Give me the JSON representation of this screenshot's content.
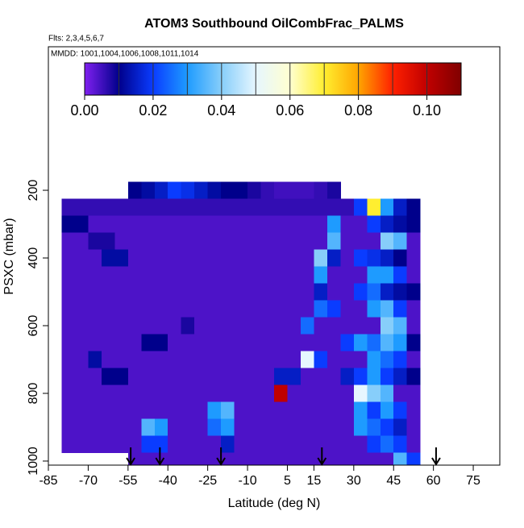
{
  "chart_data": {
    "type": "heatmap",
    "title": "ATOM3 Southbound OilCombFrac_PALMS",
    "subtitle": "Flts: 2,3,4,5,6,7",
    "annotation": "MMDD: 1001,1004,1006,1008,1011,1014",
    "x_label": "Latitude (deg N)",
    "y_label": "PSXC (mbar)",
    "xlim": [
      -85,
      85
    ],
    "ylim": [
      1012,
      -224
    ],
    "xticks": [
      -85,
      -70,
      -55,
      -40,
      -25,
      -10,
      5,
      15,
      30,
      45,
      60,
      75
    ],
    "yticks": [
      200,
      400,
      600,
      800,
      1000
    ],
    "lat_bins": [
      -80,
      -75,
      -70,
      -65,
      -60,
      -55,
      -50,
      -45,
      -40,
      -35,
      -30,
      -25,
      -20,
      -15,
      -10,
      -5,
      0,
      5,
      10,
      15,
      20,
      25,
      30,
      35,
      40,
      45,
      50,
      55
    ],
    "pressure_bins": [
      175,
      225,
      275,
      325,
      375,
      425,
      475,
      525,
      575,
      625,
      675,
      725,
      775,
      825,
      875,
      925,
      975,
      1010
    ],
    "values": [
      [
        null,
        null,
        null,
        null,
        null,
        0.01,
        0.012,
        0.015,
        0.02,
        0.018,
        0.015,
        0.012,
        0.01,
        0.01,
        0.008,
        0.006,
        0.005,
        0.005,
        0.005,
        0.006,
        0.008,
        null,
        null,
        null,
        null,
        null,
        null
      ],
      [
        0.006,
        0.006,
        0.006,
        0.006,
        0.006,
        0.006,
        0.006,
        0.006,
        0.006,
        0.006,
        0.006,
        0.006,
        0.006,
        0.006,
        0.006,
        0.006,
        0.006,
        0.006,
        0.006,
        0.006,
        0.006,
        0.006,
        0.02,
        0.07,
        0.03,
        0.015,
        0.01
      ],
      [
        0.01,
        0.01,
        0.004,
        0.004,
        0.004,
        0.004,
        0.004,
        0.004,
        0.004,
        0.004,
        0.004,
        0.004,
        0.004,
        0.004,
        0.004,
        0.004,
        0.004,
        0.004,
        0.004,
        0.004,
        0.03,
        0.004,
        0.004,
        0.02,
        0.015,
        0.012,
        0.01
      ],
      [
        0.004,
        0.004,
        0.008,
        0.008,
        0.004,
        0.004,
        0.004,
        0.004,
        0.004,
        0.004,
        0.004,
        0.004,
        0.004,
        0.004,
        0.004,
        0.004,
        0.004,
        0.004,
        0.004,
        0.004,
        0.035,
        0.004,
        0.004,
        0.004,
        0.04,
        0.035,
        0.004
      ],
      [
        0.004,
        0.004,
        0.004,
        0.012,
        0.012,
        0.004,
        0.004,
        0.004,
        0.004,
        0.004,
        0.004,
        0.004,
        0.004,
        0.004,
        0.004,
        0.004,
        0.004,
        0.004,
        0.004,
        0.04,
        0.015,
        0.004,
        0.02,
        0.018,
        0.015,
        0.01,
        0.004
      ],
      [
        0.004,
        0.004,
        0.004,
        0.004,
        0.004,
        0.004,
        0.004,
        0.004,
        0.004,
        0.004,
        0.004,
        0.004,
        0.004,
        0.004,
        0.004,
        0.004,
        0.004,
        0.004,
        0.004,
        0.03,
        0.004,
        0.004,
        0.004,
        0.03,
        0.03,
        0.02,
        0.004
      ],
      [
        0.004,
        0.004,
        0.004,
        0.004,
        0.004,
        0.004,
        0.004,
        0.004,
        0.004,
        0.004,
        0.004,
        0.004,
        0.004,
        0.004,
        0.004,
        0.004,
        0.004,
        0.004,
        0.004,
        0.015,
        0.004,
        0.004,
        0.02,
        0.025,
        0.015,
        0.012,
        0.01
      ],
      [
        0.004,
        0.004,
        0.004,
        0.004,
        0.004,
        0.004,
        0.004,
        0.004,
        0.004,
        0.004,
        0.004,
        0.004,
        0.004,
        0.004,
        0.004,
        0.004,
        0.004,
        0.004,
        0.004,
        0.025,
        0.02,
        0.004,
        0.004,
        0.03,
        0.035,
        0.02,
        0.004
      ],
      [
        0.004,
        0.004,
        0.004,
        0.004,
        0.004,
        0.004,
        0.004,
        0.004,
        0.004,
        0.008,
        0.004,
        0.004,
        0.004,
        0.004,
        0.004,
        0.004,
        0.004,
        0.004,
        0.025,
        0.004,
        0.004,
        0.004,
        0.004,
        0.004,
        0.04,
        0.035,
        0.004
      ],
      [
        0.004,
        0.004,
        0.004,
        0.004,
        0.004,
        0.004,
        0.01,
        0.01,
        0.004,
        0.004,
        0.004,
        0.004,
        0.004,
        0.004,
        0.004,
        0.004,
        0.004,
        0.004,
        0.004,
        0.004,
        0.004,
        0.02,
        0.03,
        0.025,
        0.035,
        0.03,
        0.01
      ],
      [
        0.004,
        0.004,
        0.012,
        0.004,
        0.004,
        0.004,
        0.004,
        0.004,
        0.004,
        0.004,
        0.004,
        0.004,
        0.004,
        0.004,
        0.004,
        0.004,
        0.004,
        0.004,
        0.05,
        0.02,
        0.004,
        0.004,
        0.004,
        0.03,
        0.025,
        0.02,
        0.004
      ],
      [
        0.004,
        0.004,
        0.004,
        0.01,
        0.01,
        0.004,
        0.004,
        0.004,
        0.004,
        0.004,
        0.004,
        0.004,
        0.004,
        0.004,
        0.004,
        0.004,
        0.015,
        0.015,
        0.004,
        0.004,
        0.004,
        0.015,
        0.02,
        0.03,
        0.02,
        0.015,
        0.01
      ],
      [
        0.004,
        0.004,
        0.004,
        0.004,
        0.004,
        0.004,
        0.004,
        0.004,
        0.004,
        0.004,
        0.004,
        0.004,
        0.004,
        0.004,
        0.004,
        0.004,
        0.1,
        0.004,
        0.004,
        0.004,
        0.004,
        0.004,
        0.05,
        0.04,
        0.035,
        0.004,
        0.004
      ],
      [
        0.004,
        0.004,
        0.004,
        0.004,
        0.004,
        0.004,
        0.004,
        0.004,
        0.004,
        0.004,
        0.004,
        0.03,
        0.035,
        0.004,
        0.004,
        0.004,
        0.004,
        0.004,
        0.004,
        0.004,
        0.004,
        0.004,
        0.03,
        0.02,
        0.03,
        0.02,
        0.004
      ],
      [
        0.004,
        0.004,
        0.004,
        0.004,
        0.004,
        0.004,
        0.035,
        0.03,
        0.004,
        0.004,
        0.004,
        0.025,
        0.03,
        0.004,
        0.004,
        0.004,
        0.004,
        0.004,
        0.004,
        0.004,
        0.004,
        0.004,
        0.03,
        0.025,
        0.02,
        0.015,
        0.004
      ],
      [
        0.004,
        0.004,
        0.004,
        0.004,
        0.004,
        0.004,
        0.02,
        0.02,
        0.004,
        0.004,
        0.004,
        0.004,
        0.015,
        0.004,
        0.004,
        0.004,
        0.004,
        0.004,
        0.004,
        0.004,
        0.004,
        0.004,
        0.004,
        0.02,
        0.025,
        0.02,
        0.004
      ],
      [
        null,
        null,
        null,
        null,
        null,
        0.004,
        0.004,
        0.004,
        0.004,
        0.004,
        0.004,
        0.004,
        0.004,
        0.004,
        0.004,
        0.004,
        0.004,
        0.004,
        0.004,
        0.004,
        0.004,
        0.004,
        0.004,
        0.004,
        0.004,
        0.035,
        0.02
      ]
    ],
    "colorbar_lim": [
      0,
      0.11
    ],
    "colorbar_ticks": [
      {
        "value": 0,
        "label": "0.00"
      },
      {
        "value": 0.02,
        "label": "0.02"
      },
      {
        "value": 0.04,
        "label": "0.04"
      },
      {
        "value": 0.06,
        "label": "0.06"
      },
      {
        "value": 0.08,
        "label": "0.08"
      },
      {
        "value": 0.1,
        "label": "0.10"
      }
    ],
    "colorscale": [
      "#8020f0",
      "#00008b",
      "#0a3cff",
      "#1e9bff",
      "#87cefa",
      "#e6f6ff",
      "#ffffd0",
      "#ffee30",
      "#ffa500",
      "#ff2000",
      "#c00000",
      "#800000"
    ],
    "arrow_lats": [
      -54,
      -43,
      -20,
      18,
      61
    ]
  }
}
